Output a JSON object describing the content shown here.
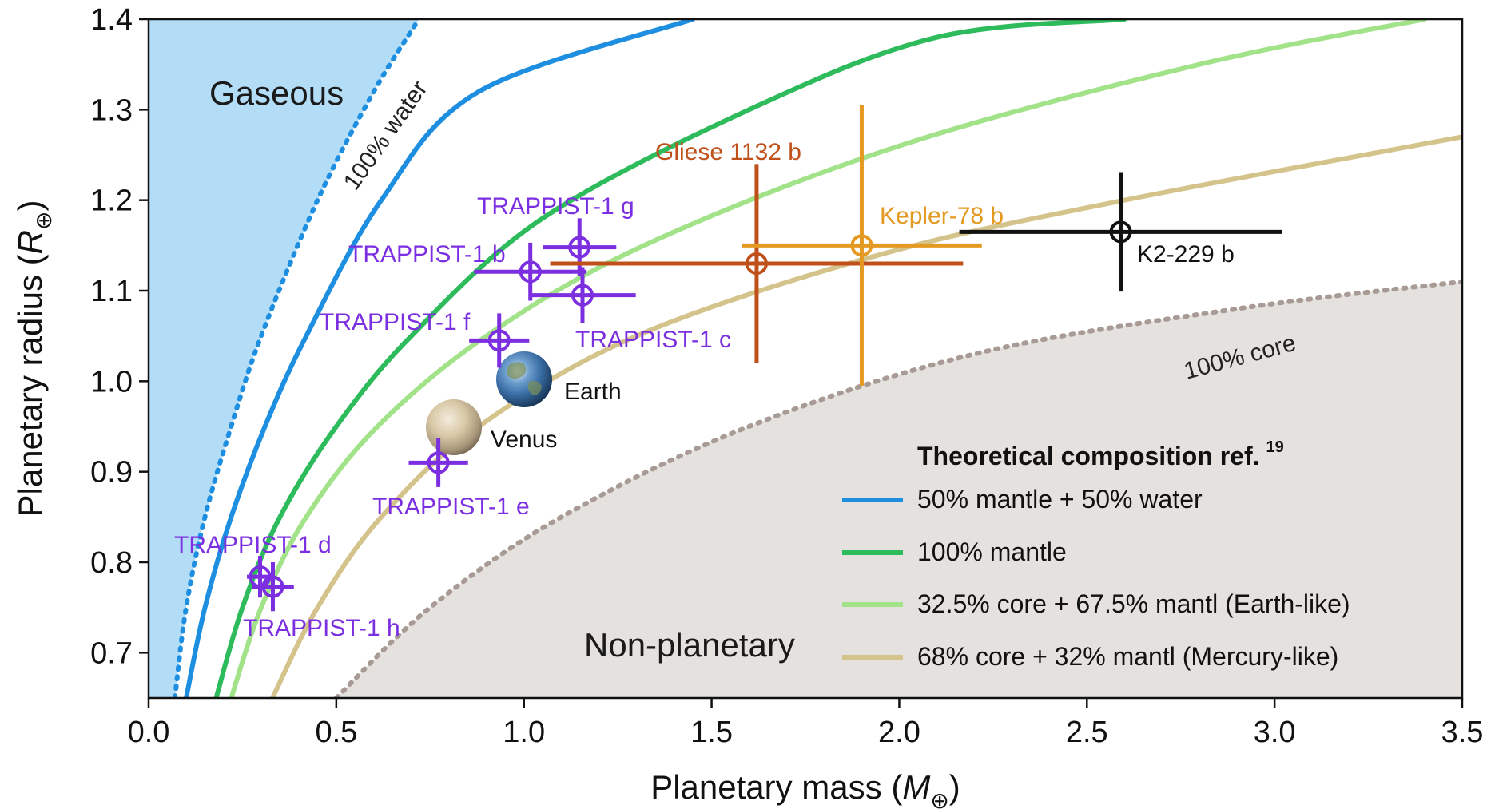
{
  "chart_data": {
    "type": "scatter",
    "xlabel_text": "Planetary mass (",
    "xlabel_symbol": "M",
    "xlabel_sub": "⊕",
    "xlabel_close": ")",
    "ylabel_text": "Planetary radius (",
    "ylabel_symbol": "R",
    "ylabel_sub": "⊕",
    "ylabel_close": ")",
    "xlim": [
      0.0,
      3.5
    ],
    "ylim": [
      0.65,
      1.4
    ],
    "xticks": [
      "0.0",
      "0.5",
      "1.0",
      "1.5",
      "2.0",
      "2.5",
      "3.0",
      "3.5"
    ],
    "yticks": [
      "0.7",
      "0.8",
      "0.9",
      "1.0",
      "1.1",
      "1.2",
      "1.3",
      "1.4"
    ],
    "regions": {
      "gaseous": {
        "label": "Gaseous",
        "color": "#b3dcf7"
      },
      "non_planetary": {
        "label": "Non-planetary",
        "color": "#e5e1df"
      }
    },
    "curves": [
      {
        "name": "100% water",
        "color": "#1e8fe0",
        "style": "dotted",
        "points": [
          [
            0.07,
            0.65
          ],
          [
            0.1,
            0.75
          ],
          [
            0.15,
            0.85
          ],
          [
            0.22,
            0.95
          ],
          [
            0.3,
            1.05
          ],
          [
            0.45,
            1.2
          ],
          [
            0.6,
            1.32
          ],
          [
            0.72,
            1.4
          ]
        ]
      },
      {
        "name": "50% mantle + 50% water",
        "color": "#1e8fe0",
        "style": "solid",
        "points": [
          [
            0.1,
            0.65
          ],
          [
            0.15,
            0.75
          ],
          [
            0.22,
            0.85
          ],
          [
            0.31,
            0.95
          ],
          [
            0.42,
            1.05
          ],
          [
            0.62,
            1.2
          ],
          [
            0.88,
            1.32
          ],
          [
            1.45,
            1.4
          ]
        ]
      },
      {
        "name": "100% mantle",
        "color": "#2dbb5c",
        "style": "solid",
        "points": [
          [
            0.18,
            0.65
          ],
          [
            0.25,
            0.75
          ],
          [
            0.35,
            0.85
          ],
          [
            0.5,
            0.95
          ],
          [
            0.7,
            1.05
          ],
          [
            1.05,
            1.18
          ],
          [
            1.6,
            1.3
          ],
          [
            2.1,
            1.38
          ],
          [
            2.6,
            1.4
          ]
        ]
      },
      {
        "name": "32.5% core + 67.5% mantl (Earth-like)",
        "color": "#a2e38a",
        "style": "solid",
        "points": [
          [
            0.22,
            0.65
          ],
          [
            0.3,
            0.75
          ],
          [
            0.42,
            0.85
          ],
          [
            0.61,
            0.95
          ],
          [
            0.9,
            1.05
          ],
          [
            1.32,
            1.15
          ],
          [
            2.0,
            1.26
          ],
          [
            2.8,
            1.35
          ],
          [
            3.4,
            1.4
          ]
        ]
      },
      {
        "name": "68% core + 32% mantl (Mercury-like)",
        "color": "#d4c48c",
        "style": "solid",
        "points": [
          [
            0.33,
            0.65
          ],
          [
            0.45,
            0.75
          ],
          [
            0.62,
            0.85
          ],
          [
            0.88,
            0.95
          ],
          [
            1.3,
            1.05
          ],
          [
            1.95,
            1.14
          ],
          [
            2.6,
            1.2
          ],
          [
            3.5,
            1.27
          ]
        ]
      },
      {
        "name": "100% core",
        "color": "#a89a94",
        "style": "dotted",
        "points": [
          [
            0.5,
            0.65
          ],
          [
            0.75,
            0.75
          ],
          [
            1.1,
            0.85
          ],
          [
            1.6,
            0.95
          ],
          [
            2.2,
            1.03
          ],
          [
            2.9,
            1.08
          ],
          [
            3.5,
            1.11
          ]
        ]
      }
    ],
    "curve_labels": {
      "water": "100% water",
      "core": "100% core"
    },
    "planets": [
      {
        "name": "TRAPPIST-1 g",
        "x": 1.148,
        "y": 1.148,
        "xerr": 0.098,
        "yerr": 0.032,
        "color": "#7b2fe0"
      },
      {
        "name": "TRAPPIST-1 b",
        "x": 1.017,
        "y": 1.121,
        "xerr": 0.15,
        "yerr": 0.032,
        "color": "#7b2fe0"
      },
      {
        "name": "TRAPPIST-1 c",
        "x": 1.156,
        "y": 1.095,
        "xerr": 0.142,
        "yerr": 0.031,
        "color": "#7b2fe0"
      },
      {
        "name": "TRAPPIST-1 f",
        "x": 0.934,
        "y": 1.045,
        "xerr": 0.08,
        "yerr": 0.03,
        "color": "#7b2fe0"
      },
      {
        "name": "TRAPPIST-1 e",
        "x": 0.772,
        "y": 0.91,
        "xerr": 0.079,
        "yerr": 0.027,
        "color": "#7b2fe0"
      },
      {
        "name": "TRAPPIST-1 d",
        "x": 0.297,
        "y": 0.784,
        "xerr": 0.035,
        "yerr": 0.023,
        "color": "#7b2fe0"
      },
      {
        "name": "TRAPPIST-1 h",
        "x": 0.331,
        "y": 0.773,
        "xerr": 0.056,
        "yerr": 0.027,
        "color": "#7b2fe0"
      },
      {
        "name": "Gliese 1132 b",
        "x": 1.62,
        "y": 1.13,
        "xerr": 0.55,
        "yerr": 0.11,
        "color": "#c0501a"
      },
      {
        "name": "Kepler-78 b",
        "x": 1.9,
        "y": 1.15,
        "xerr": 0.32,
        "yerr": 0.155,
        "color": "#e49a22"
      },
      {
        "name": "K2-229 b",
        "x": 2.59,
        "y": 1.165,
        "xerr": 0.43,
        "yerr": 0.066,
        "color": "#111111"
      }
    ],
    "reference_planets": [
      {
        "name": "Earth",
        "x": 1.0,
        "y": 1.0
      },
      {
        "name": "Venus",
        "x": 0.815,
        "y": 0.95
      }
    ],
    "legend": {
      "title": "Theoretical composition ref.",
      "title_ref": "19",
      "placement": "bottom-right",
      "entries": [
        {
          "label": "50% mantle + 50% water",
          "color": "#1e8fe0"
        },
        {
          "label": "100% mantle",
          "color": "#2dbb5c"
        },
        {
          "label": "32.5% core + 67.5% mantl (Earth-like)",
          "color": "#a2e38a"
        },
        {
          "label": "68% core + 32% mantl (Mercury-like)",
          "color": "#d4c48c"
        }
      ]
    },
    "grid": false
  }
}
